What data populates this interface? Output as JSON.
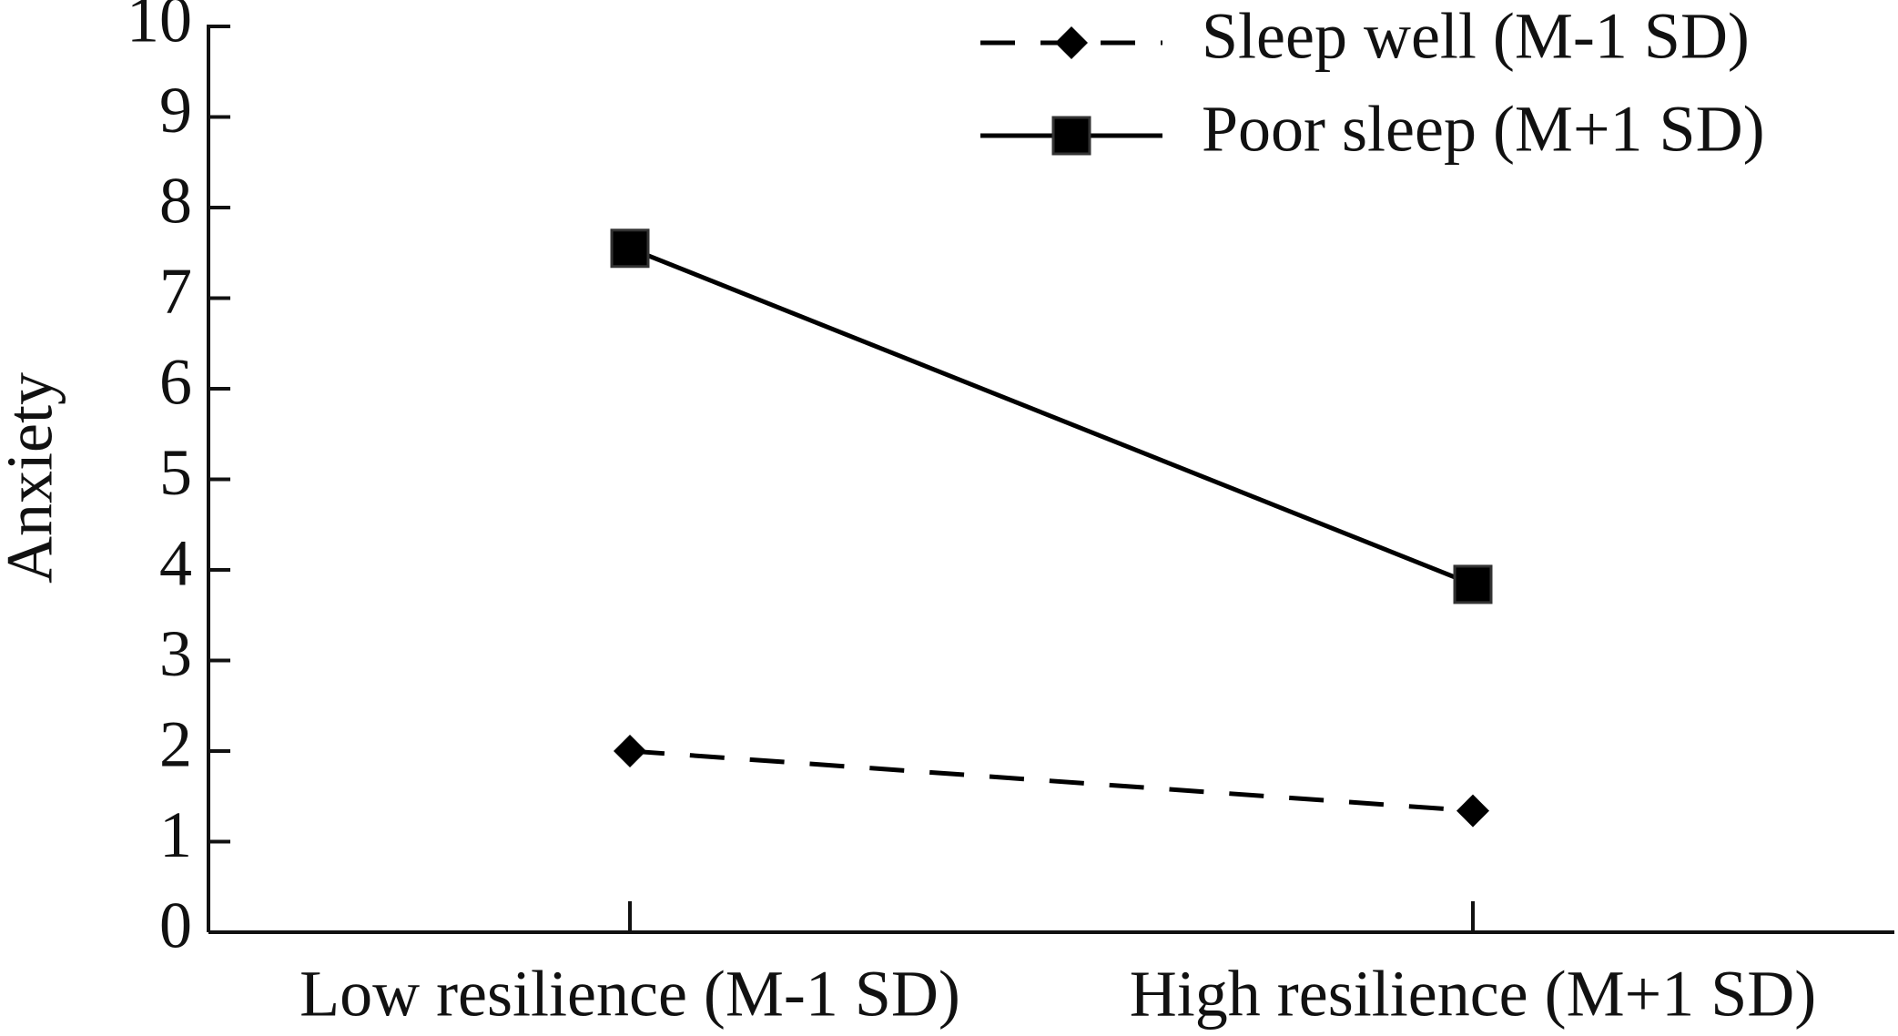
{
  "chart_data": {
    "type": "line",
    "y_label": "Anxiety",
    "categories": [
      "Low resilience (M-1 SD)",
      "High resilience (M+1 SD)"
    ],
    "series": [
      {
        "name": "Sleep well (M-1 SD)",
        "color": "#000000",
        "dash": "dashed",
        "marker": "diamond",
        "values": [
          2.0,
          1.34
        ]
      },
      {
        "name": "Poor sleep (M+1 SD)",
        "color": "#000000",
        "dash": "solid",
        "marker": "square",
        "values": [
          7.55,
          3.84
        ]
      }
    ],
    "ylim": [
      0,
      10
    ],
    "yticks": [
      0,
      1,
      2,
      3,
      4,
      5,
      6,
      7,
      8,
      9,
      10
    ],
    "grid": false,
    "legend": "top-right"
  }
}
